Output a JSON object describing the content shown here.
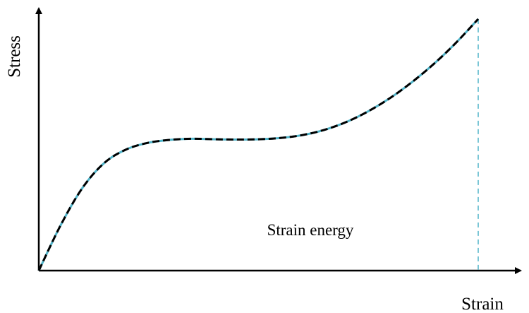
{
  "chart_data": {
    "type": "line",
    "title": "",
    "xlabel": "Strain",
    "ylabel": "Stress",
    "annotation": "Strain energy",
    "ticks": "none",
    "grid": false,
    "legend": "none",
    "xlim": [
      0,
      100
    ],
    "ylim": [
      0,
      100
    ],
    "series": [
      {
        "name": "stress-strain curve",
        "color": "#000000",
        "overlay_color": "#4fb3c8",
        "x": [
          0,
          5,
          10,
          15,
          20,
          25,
          30,
          35,
          40,
          45,
          50,
          55,
          60,
          65,
          70,
          75,
          80,
          85,
          90,
          95,
          100
        ],
        "y": [
          0,
          17.4,
          31.7,
          41.2,
          46.3,
          48.8,
          49.9,
          50.3,
          50.1,
          50.0,
          50.1,
          50.6,
          51.7,
          53.7,
          56.7,
          60.8,
          65.9,
          72.0,
          79.0,
          87.0,
          96.0
        ]
      }
    ],
    "end_marker": {
      "x": 100,
      "style": "dashed vertical line to x-axis",
      "color": "#4fb3c8"
    }
  }
}
